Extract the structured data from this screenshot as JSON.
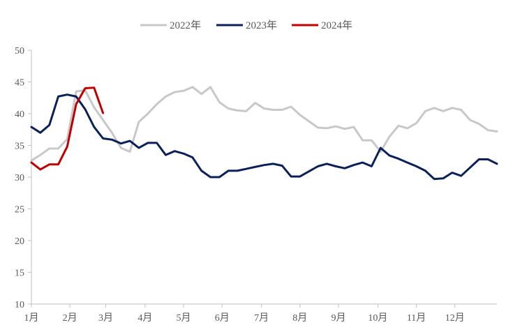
{
  "chart_data": {
    "type": "line",
    "title": "",
    "xlabel": "",
    "ylabel": "",
    "ylim": [
      10,
      50
    ],
    "yticks": [
      10,
      15,
      20,
      25,
      30,
      35,
      40,
      45,
      50
    ],
    "xlim": [
      0,
      52
    ],
    "month_labels": [
      "1月",
      "2月",
      "3月",
      "4月",
      "5月",
      "6月",
      "7月",
      "8月",
      "9月",
      "10月",
      "11月",
      "12月"
    ],
    "month_positions": [
      0,
      4.3,
      8.3,
      12.7,
      17,
      21.3,
      25.7,
      30,
      34.3,
      38.7,
      43,
      47.3
    ],
    "legend_position": "top",
    "series": [
      {
        "name": "2022年",
        "color": "#c8c8c8",
        "x": [
          0,
          1,
          2,
          3,
          4,
          5,
          6,
          7,
          8,
          9,
          10,
          11,
          12,
          13,
          14,
          15,
          16,
          17,
          18,
          19,
          20,
          21,
          22,
          23,
          24,
          25,
          26,
          27,
          28,
          29,
          30,
          31,
          32,
          33,
          34,
          35,
          36,
          37,
          38,
          39,
          40,
          41,
          42,
          43,
          44,
          45,
          46,
          47,
          48,
          49,
          50,
          51,
          52
        ],
        "values": [
          32.6,
          33.5,
          34.5,
          34.5,
          36,
          43.5,
          43.7,
          41,
          39,
          37,
          34.6,
          34,
          38.7,
          40,
          41.5,
          42.7,
          43.4,
          43.6,
          44.2,
          43.1,
          44.2,
          41.8,
          40.8,
          40.5,
          40.4,
          41.7,
          40.8,
          40.6,
          40.6,
          41.1,
          39.8,
          38.8,
          37.8,
          37.7,
          38,
          37.6,
          37.9,
          35.8,
          35.8,
          34,
          36.4,
          38.1,
          37.7,
          38.5,
          40.4,
          40.9,
          40.4,
          40.9,
          40.6,
          39,
          38.4,
          37.4,
          37.2
        ]
      },
      {
        "name": "2023年",
        "color": "#0a2057",
        "x": [
          0,
          1,
          2,
          3,
          4,
          5,
          6,
          7,
          8,
          9,
          10,
          11,
          12,
          13,
          14,
          15,
          16,
          17,
          18,
          19,
          20,
          21,
          22,
          23,
          24,
          25,
          26,
          27,
          28,
          29,
          30,
          31,
          32,
          33,
          34,
          35,
          36,
          37,
          38,
          39,
          40,
          41,
          42,
          43,
          44,
          45,
          46,
          47,
          48,
          49,
          50,
          51,
          52
        ],
        "values": [
          37.9,
          37,
          38.2,
          42.7,
          43,
          42.7,
          40.7,
          37.9,
          36.1,
          35.9,
          35.3,
          35.7,
          34.6,
          35.4,
          35.4,
          33.5,
          34.1,
          33.7,
          33.1,
          31,
          30,
          30,
          31,
          31,
          31.3,
          31.6,
          31.9,
          32.1,
          31.8,
          30.1,
          30.1,
          30.9,
          31.7,
          32.1,
          31.7,
          31.4,
          31.9,
          32.3,
          31.7,
          34.6,
          33.4,
          32.9,
          32.3,
          31.7,
          31,
          29.7,
          29.8,
          30.7,
          30.2,
          31.5,
          32.8,
          32.8,
          32.1
        ]
      },
      {
        "name": "2024年",
        "color": "#c00000",
        "x": [
          0,
          1,
          2,
          3,
          4,
          5,
          6,
          7,
          8
        ],
        "values": [
          32.3,
          31.2,
          32,
          32,
          34.8,
          41.5,
          44,
          44.1,
          40.1
        ]
      }
    ]
  }
}
